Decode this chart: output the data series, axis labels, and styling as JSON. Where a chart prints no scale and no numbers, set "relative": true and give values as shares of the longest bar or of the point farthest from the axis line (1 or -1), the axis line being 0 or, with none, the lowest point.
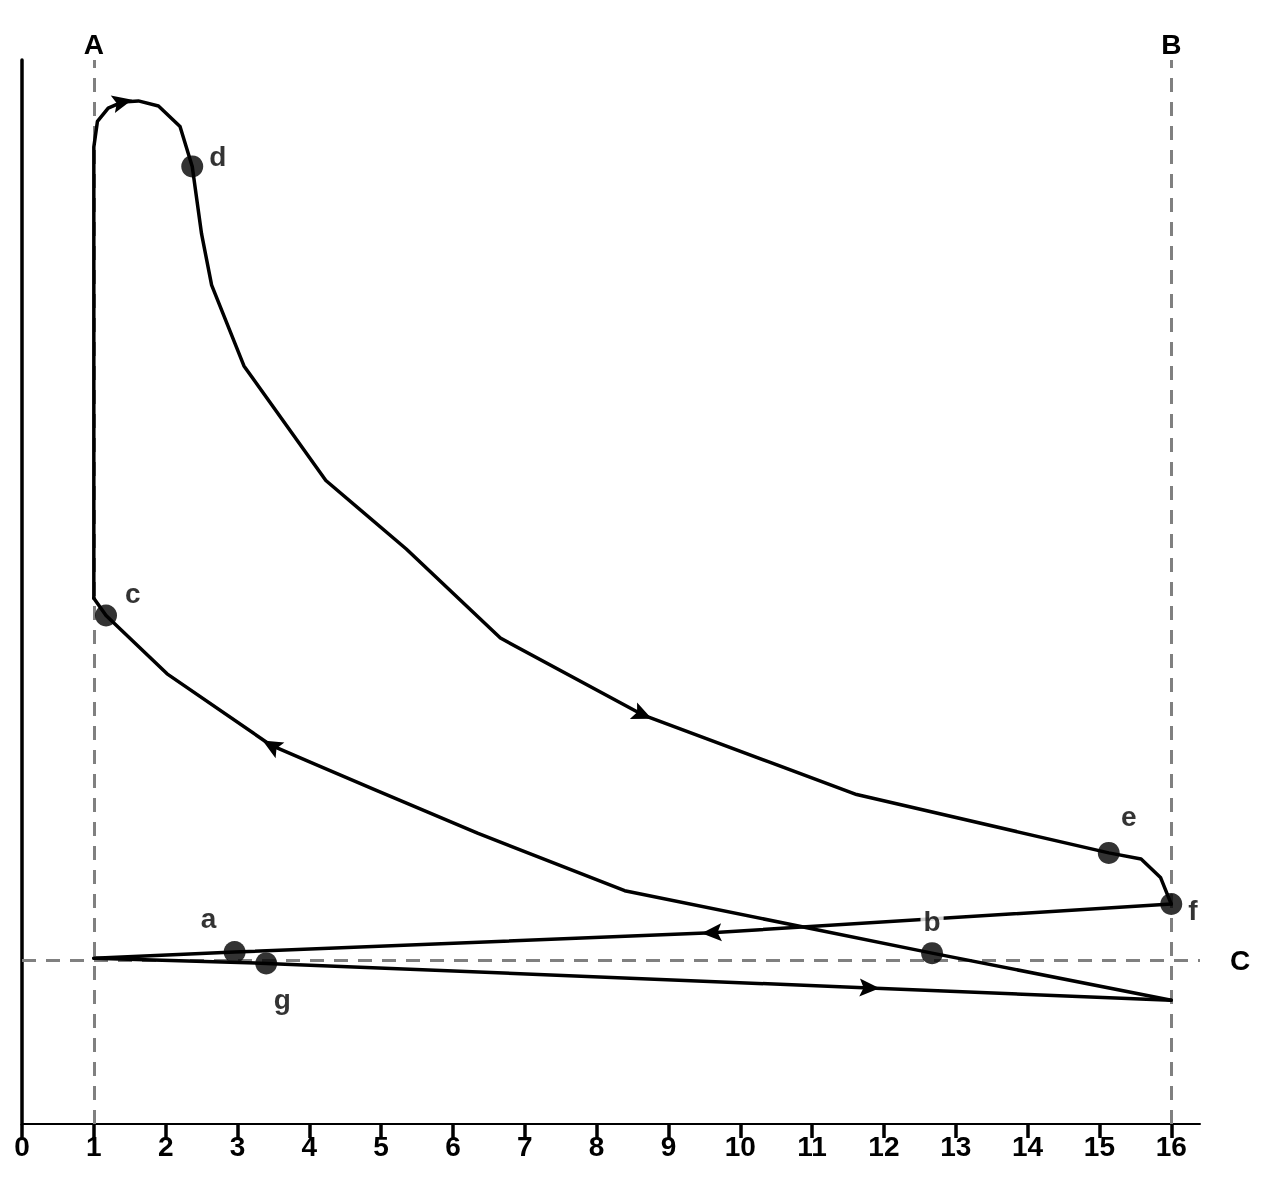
{
  "chart_data": {
    "type": "line",
    "relative": true,
    "tick_labels": "x",
    "grid": false,
    "marker": "none",
    "line_style": "solid",
    "xlim": [
      0,
      16.4
    ],
    "xticks": [
      0,
      1,
      2,
      3,
      4,
      5,
      6,
      7,
      8,
      9,
      10,
      11,
      12,
      13,
      14,
      15,
      16
    ],
    "series": [
      {
        "color": "#000000",
        "x": [
          1,
          1.0,
          1.05,
          1.2,
          1.4,
          1.62,
          1.9,
          2.2,
          2.37,
          2.5,
          2.64,
          3.09,
          4.23,
          5.35,
          6.66,
          8.64,
          11.62,
          15.13,
          15.58,
          15.85,
          16
        ],
        "values": [
          0.514,
          0.955,
          0.98,
          0.993,
          0.999,
          1.0,
          0.995,
          0.975,
          0.936,
          0.87,
          0.82,
          0.741,
          0.629,
          0.562,
          0.475,
          0.4,
          0.322,
          0.265,
          0.259,
          0.241,
          0.215
        ]
      },
      {
        "color": "#000000",
        "x": [
          16,
          9.6,
          2.96,
          1
        ],
        "values": [
          0.215,
          0.187,
          0.168,
          0.162
        ]
      },
      {
        "color": "#000000",
        "x": [
          1,
          3.4,
          11.8,
          16
        ],
        "values": [
          0.162,
          0.157,
          0.133,
          0.121
        ]
      },
      {
        "color": "#000000",
        "x": [
          16,
          12.67,
          8.39,
          6.35,
          4.9,
          3.47,
          2.02,
          1.17,
          1.0
        ],
        "values": [
          0.121,
          0.167,
          0.228,
          0.284,
          0.327,
          0.37,
          0.44,
          0.497,
          0.514
        ]
      },
      {
        "type": "scatter",
        "marker": "circle",
        "color": "#000000",
        "x": [
          2.96,
          12.67,
          1.17,
          2.37,
          15.13,
          16,
          3.4
        ],
        "values": [
          0.168,
          0.167,
          0.497,
          0.936,
          0.265,
          0.215,
          0.157
        ]
      }
    ],
    "ref_lines": [
      {
        "axis": "x",
        "value": 1,
        "label": "A",
        "color": "#808080",
        "line_style": "dashed"
      },
      {
        "axis": "x",
        "value": 16,
        "label": "B",
        "color": "#808080",
        "line_style": "dashed"
      },
      {
        "axis": "y",
        "value": 0.162,
        "label": "C",
        "color": "#808080",
        "line_style": "dashed"
      }
    ],
    "annotations": [
      {
        "text": "a",
        "x": 2.96,
        "y": 0.168
      },
      {
        "text": "b",
        "x": 12.67,
        "y": 0.167
      },
      {
        "text": "c",
        "x": 1.17,
        "y": 0.497
      },
      {
        "text": "d",
        "x": 2.37,
        "y": 0.936
      },
      {
        "text": "e",
        "x": 15.13,
        "y": 0.265
      },
      {
        "text": "f",
        "x": 16,
        "y": 0.215
      },
      {
        "text": "g",
        "x": 3.4,
        "y": 0.157
      }
    ]
  }
}
